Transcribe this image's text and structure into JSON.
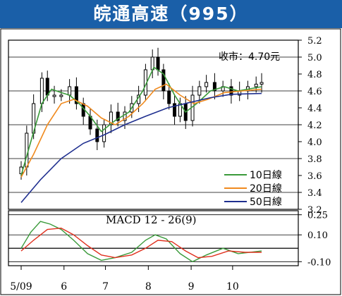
{
  "header": {
    "title": "皖通高速（995）"
  },
  "colors": {
    "title_bg": "#1a5fa8",
    "title_text": "#ffffff",
    "grid": "#000000",
    "candle": "#000000",
    "ma10": "#3a9a3a",
    "ma20": "#f08a1e",
    "ma50": "#1f2f8f",
    "macd": "#3a9a3a",
    "signal": "#e0301e"
  },
  "chart_data": [
    {
      "type": "candlestick",
      "annotation": "收市：4.70元",
      "x_tick_labels": [
        "5/09",
        "6",
        "7",
        "8",
        "9",
        "10"
      ],
      "y_tick_labels": [
        "5.2",
        "5.0",
        "4.8",
        "4.6",
        "4.4",
        "4.2",
        "4.0",
        "3.8",
        "3.6",
        "3.4",
        "3.2"
      ],
      "ylim": [
        3.2,
        5.2
      ],
      "grid": true,
      "legend": [
        "10日線",
        "20日線",
        "50日線"
      ],
      "legend_position": "bottom-right",
      "close_series": [
        {
          "x": "2009-05-01",
          "y": 3.7
        },
        {
          "x": "2009-05-05",
          "y": 4.1
        },
        {
          "x": "2009-05-10",
          "y": 4.45
        },
        {
          "x": "2009-05-16",
          "y": 4.75
        },
        {
          "x": "2009-05-20",
          "y": 4.55
        },
        {
          "x": "2009-05-25",
          "y": 4.55
        },
        {
          "x": "2009-05-30",
          "y": 4.55
        },
        {
          "x": "2009-06-05",
          "y": 4.65
        },
        {
          "x": "2009-06-10",
          "y": 4.45
        },
        {
          "x": "2009-06-15",
          "y": 4.3
        },
        {
          "x": "2009-06-20",
          "y": 4.15
        },
        {
          "x": "2009-06-25",
          "y": 4.0
        },
        {
          "x": "2009-06-30",
          "y": 4.2
        },
        {
          "x": "2009-07-05",
          "y": 4.35
        },
        {
          "x": "2009-07-10",
          "y": 4.25
        },
        {
          "x": "2009-07-15",
          "y": 4.35
        },
        {
          "x": "2009-07-20",
          "y": 4.45
        },
        {
          "x": "2009-07-25",
          "y": 4.55
        },
        {
          "x": "2009-07-30",
          "y": 4.85
        },
        {
          "x": "2009-08-04",
          "y": 5.0
        },
        {
          "x": "2009-08-08",
          "y": 4.85
        },
        {
          "x": "2009-08-12",
          "y": 4.6
        },
        {
          "x": "2009-08-16",
          "y": 4.45
        },
        {
          "x": "2009-08-20",
          "y": 4.3
        },
        {
          "x": "2009-08-24",
          "y": 4.45
        },
        {
          "x": "2009-08-28",
          "y": 4.25
        },
        {
          "x": "2009-09-02",
          "y": 4.55
        },
        {
          "x": "2009-09-07",
          "y": 4.65
        },
        {
          "x": "2009-09-12",
          "y": 4.7
        },
        {
          "x": "2009-09-18",
          "y": 4.6
        },
        {
          "x": "2009-09-24",
          "y": 4.65
        },
        {
          "x": "2009-09-30",
          "y": 4.55
        },
        {
          "x": "2009-10-06",
          "y": 4.6
        },
        {
          "x": "2009-10-12",
          "y": 4.65
        },
        {
          "x": "2009-10-18",
          "y": 4.68
        },
        {
          "x": "2009-10-22",
          "y": 4.7
        }
      ],
      "series": [
        {
          "name": "10日線",
          "points": [
            {
              "x": "2009-05-01",
              "y": 3.6
            },
            {
              "x": "2009-05-08",
              "y": 4.0
            },
            {
              "x": "2009-05-16",
              "y": 4.45
            },
            {
              "x": "2009-05-23",
              "y": 4.62
            },
            {
              "x": "2009-05-30",
              "y": 4.58
            },
            {
              "x": "2009-06-05",
              "y": 4.55
            },
            {
              "x": "2009-06-12",
              "y": 4.45
            },
            {
              "x": "2009-06-20",
              "y": 4.3
            },
            {
              "x": "2009-06-28",
              "y": 4.12
            },
            {
              "x": "2009-07-08",
              "y": 4.25
            },
            {
              "x": "2009-07-18",
              "y": 4.35
            },
            {
              "x": "2009-07-28",
              "y": 4.6
            },
            {
              "x": "2009-08-05",
              "y": 4.88
            },
            {
              "x": "2009-08-12",
              "y": 4.8
            },
            {
              "x": "2009-08-20",
              "y": 4.55
            },
            {
              "x": "2009-08-28",
              "y": 4.35
            },
            {
              "x": "2009-09-05",
              "y": 4.45
            },
            {
              "x": "2009-09-15",
              "y": 4.6
            },
            {
              "x": "2009-09-25",
              "y": 4.65
            },
            {
              "x": "2009-10-05",
              "y": 4.6
            },
            {
              "x": "2009-10-22",
              "y": 4.65
            }
          ]
        },
        {
          "name": "20日線",
          "points": [
            {
              "x": "2009-05-01",
              "y": 3.58
            },
            {
              "x": "2009-05-10",
              "y": 3.85
            },
            {
              "x": "2009-05-20",
              "y": 4.2
            },
            {
              "x": "2009-05-30",
              "y": 4.45
            },
            {
              "x": "2009-06-08",
              "y": 4.5
            },
            {
              "x": "2009-06-18",
              "y": 4.42
            },
            {
              "x": "2009-06-28",
              "y": 4.28
            },
            {
              "x": "2009-07-08",
              "y": 4.2
            },
            {
              "x": "2009-07-18",
              "y": 4.3
            },
            {
              "x": "2009-07-28",
              "y": 4.45
            },
            {
              "x": "2009-08-06",
              "y": 4.62
            },
            {
              "x": "2009-08-14",
              "y": 4.68
            },
            {
              "x": "2009-08-24",
              "y": 4.55
            },
            {
              "x": "2009-09-03",
              "y": 4.45
            },
            {
              "x": "2009-09-13",
              "y": 4.5
            },
            {
              "x": "2009-09-25",
              "y": 4.58
            },
            {
              "x": "2009-10-08",
              "y": 4.6
            },
            {
              "x": "2009-10-22",
              "y": 4.62
            }
          ]
        },
        {
          "name": "50日線",
          "points": [
            {
              "x": "2009-05-01",
              "y": 3.28
            },
            {
              "x": "2009-05-15",
              "y": 3.55
            },
            {
              "x": "2009-05-30",
              "y": 3.8
            },
            {
              "x": "2009-06-15",
              "y": 3.98
            },
            {
              "x": "2009-06-30",
              "y": 4.08
            },
            {
              "x": "2009-07-15",
              "y": 4.2
            },
            {
              "x": "2009-07-30",
              "y": 4.3
            },
            {
              "x": "2009-08-15",
              "y": 4.4
            },
            {
              "x": "2009-08-30",
              "y": 4.46
            },
            {
              "x": "2009-09-15",
              "y": 4.52
            },
            {
              "x": "2009-09-30",
              "y": 4.56
            },
            {
              "x": "2009-10-22",
              "y": 4.57
            }
          ]
        }
      ]
    },
    {
      "type": "line",
      "title": "MACD 12 - 26(9)",
      "y_tick_labels": [
        "0.25",
        "0.10",
        "-0.10"
      ],
      "ylim": [
        -0.13,
        0.28
      ],
      "grid": true,
      "series": [
        {
          "points": [
            {
              "x": "2009-05-01",
              "y": 0.0
            },
            {
              "x": "2009-05-08",
              "y": 0.12
            },
            {
              "x": "2009-05-15",
              "y": 0.2
            },
            {
              "x": "2009-05-22",
              "y": 0.18
            },
            {
              "x": "2009-05-30",
              "y": 0.14
            },
            {
              "x": "2009-06-08",
              "y": 0.06
            },
            {
              "x": "2009-06-18",
              "y": -0.04
            },
            {
              "x": "2009-06-28",
              "y": -0.09
            },
            {
              "x": "2009-07-08",
              "y": -0.07
            },
            {
              "x": "2009-07-20",
              "y": -0.03
            },
            {
              "x": "2009-07-30",
              "y": 0.06
            },
            {
              "x": "2009-08-06",
              "y": 0.1
            },
            {
              "x": "2009-08-14",
              "y": 0.07
            },
            {
              "x": "2009-08-24",
              "y": -0.04
            },
            {
              "x": "2009-09-02",
              "y": -0.1
            },
            {
              "x": "2009-09-12",
              "y": -0.05
            },
            {
              "x": "2009-09-24",
              "y": 0.0
            },
            {
              "x": "2009-10-05",
              "y": -0.04
            },
            {
              "x": "2009-10-22",
              "y": -0.02
            }
          ]
        },
        {
          "points": [
            {
              "x": "2009-05-01",
              "y": -0.02
            },
            {
              "x": "2009-05-10",
              "y": 0.06
            },
            {
              "x": "2009-05-20",
              "y": 0.14
            },
            {
              "x": "2009-05-30",
              "y": 0.15
            },
            {
              "x": "2009-06-08",
              "y": 0.1
            },
            {
              "x": "2009-06-18",
              "y": 0.02
            },
            {
              "x": "2009-06-28",
              "y": -0.05
            },
            {
              "x": "2009-07-08",
              "y": -0.07
            },
            {
              "x": "2009-07-20",
              "y": -0.05
            },
            {
              "x": "2009-07-30",
              "y": 0.0
            },
            {
              "x": "2009-08-08",
              "y": 0.06
            },
            {
              "x": "2009-08-18",
              "y": 0.05
            },
            {
              "x": "2009-08-28",
              "y": -0.02
            },
            {
              "x": "2009-09-06",
              "y": -0.07
            },
            {
              "x": "2009-09-16",
              "y": -0.06
            },
            {
              "x": "2009-09-28",
              "y": -0.02
            },
            {
              "x": "2009-10-10",
              "y": -0.03
            },
            {
              "x": "2009-10-22",
              "y": -0.03
            }
          ]
        }
      ]
    }
  ]
}
